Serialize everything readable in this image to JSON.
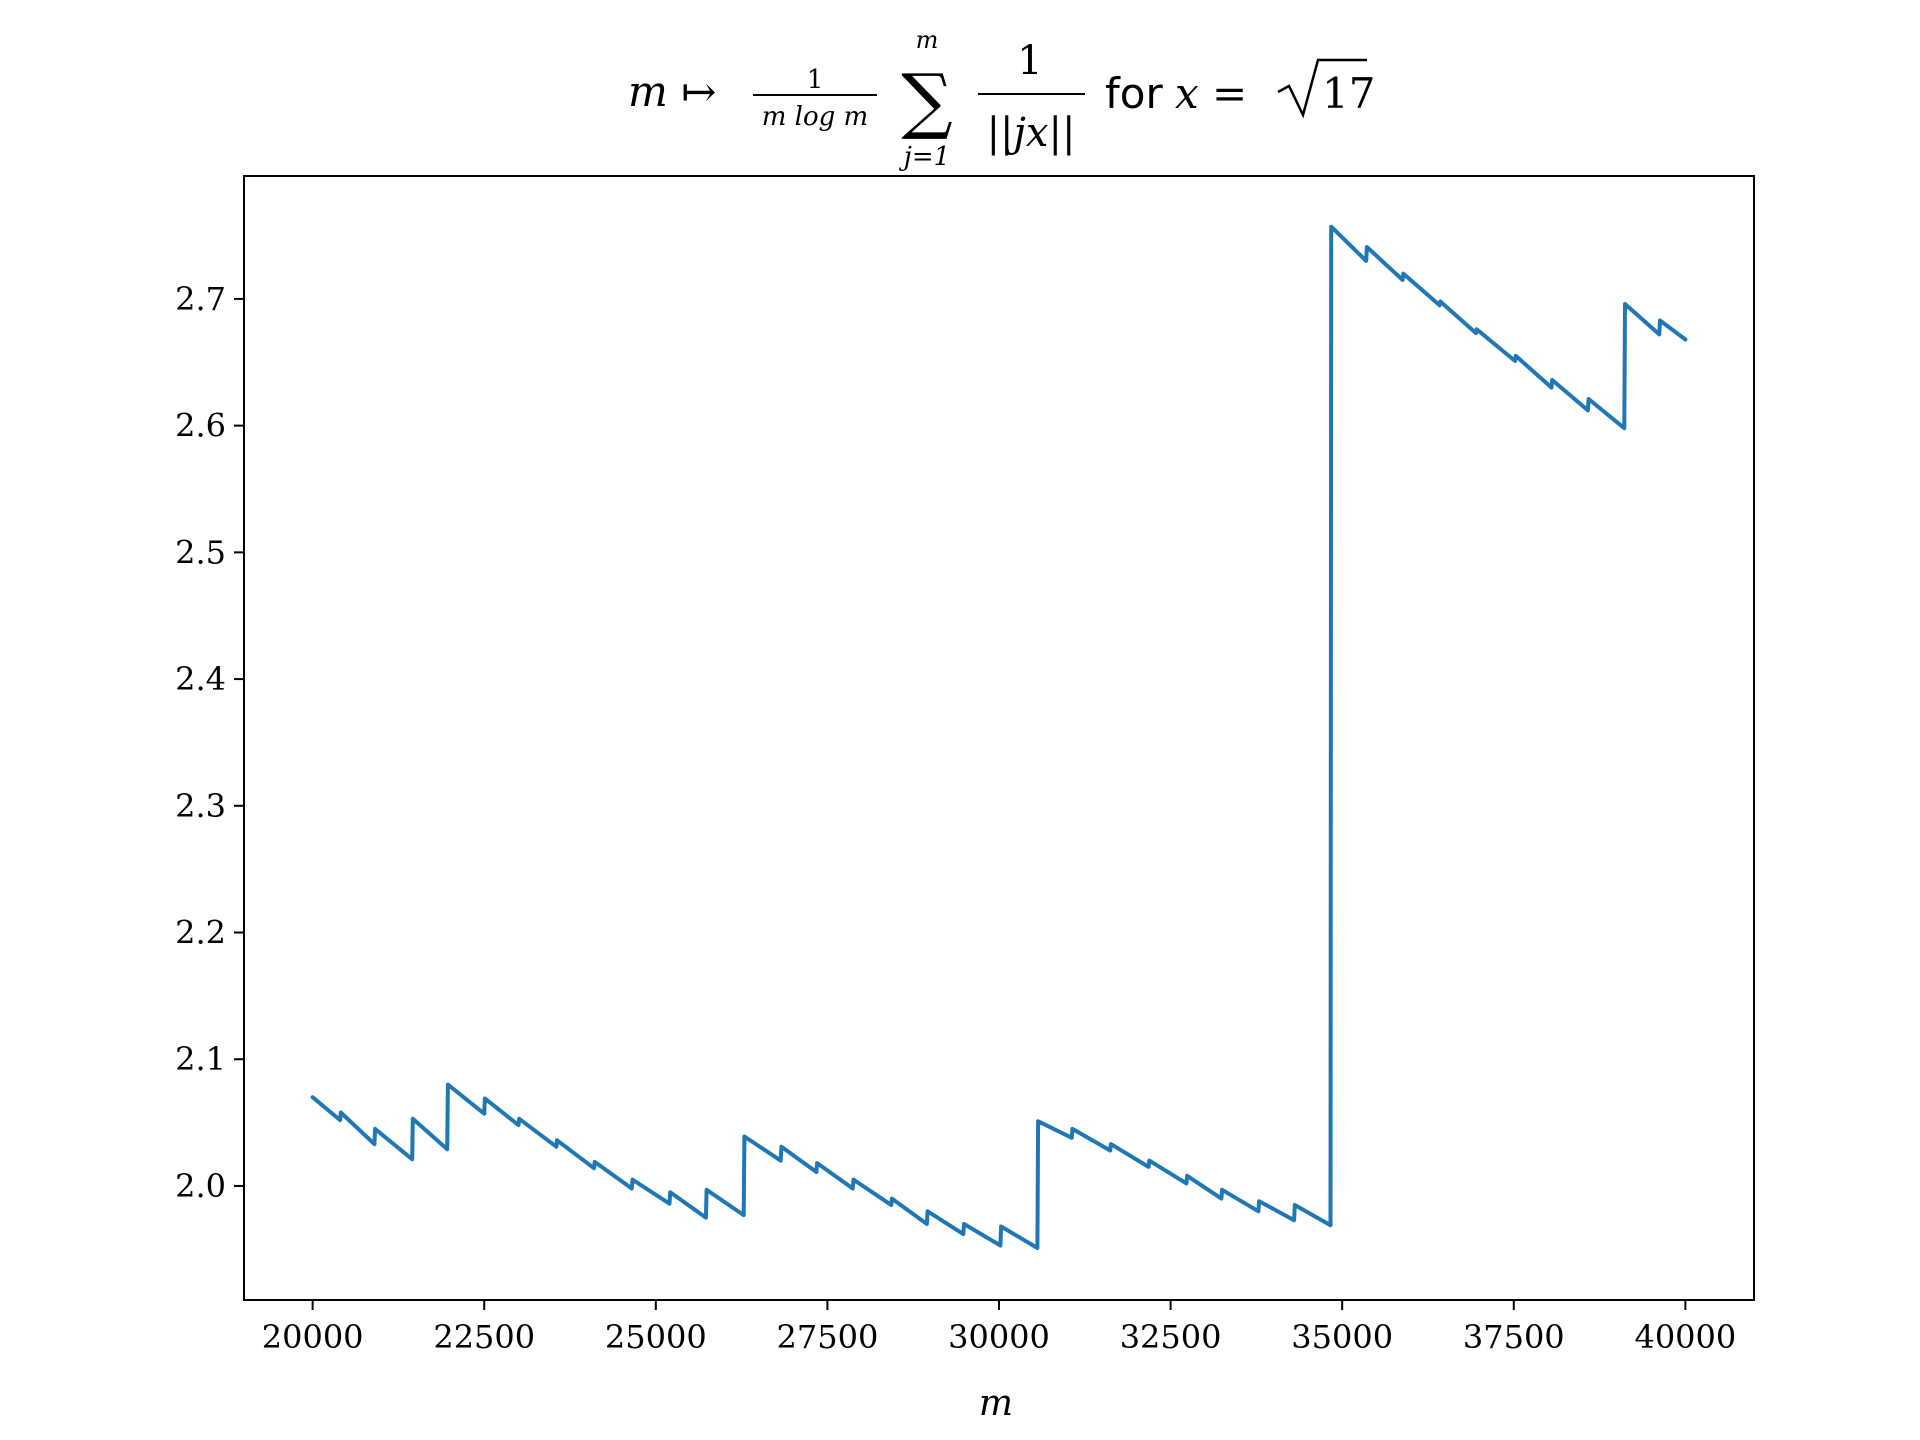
{
  "chart_data": {
    "type": "line",
    "title": {
      "lhs": "m ↦",
      "frac_num": "1",
      "frac_den": "m log m",
      "sum_symbol": "∑",
      "sum_upper": "m",
      "sum_lower": "j=1",
      "term_num": "1",
      "term_den": "||jx||",
      "for_word": "for",
      "condition": "x =",
      "radicand": "17"
    },
    "xlabel": "m",
    "ylabel": "",
    "xlim": [
      19000,
      41000
    ],
    "ylim": [
      1.91,
      2.797
    ],
    "xticks": [
      20000,
      22500,
      25000,
      27500,
      30000,
      32500,
      35000,
      37500,
      40000
    ],
    "xtick_labels": [
      "20000",
      "22500",
      "25000",
      "27500",
      "30000",
      "32500",
      "35000",
      "37500",
      "40000"
    ],
    "yticks": [
      2.0,
      2.1,
      2.2,
      2.3,
      2.4,
      2.5,
      2.6,
      2.7
    ],
    "ytick_labels": [
      "2.0",
      "2.1",
      "2.2",
      "2.3",
      "2.4",
      "2.5",
      "2.6",
      "2.7"
    ],
    "grid": false,
    "line_color": "#1f77b4",
    "series": [
      {
        "x": [
          20000,
          20400,
          20410,
          20900,
          20910,
          21450,
          21460,
          21960,
          21970,
          22500,
          22510,
          23000,
          23010,
          23550,
          23560,
          24100,
          24110,
          24650,
          24660,
          25200,
          25210,
          25730,
          25740,
          26280,
          26290,
          26820,
          26830,
          27340,
          27350,
          27870,
          27880,
          28430,
          28440,
          28950,
          28960,
          29480,
          29490,
          30020,
          30030,
          30560,
          30570,
          31060,
          31070,
          31620,
          31630,
          32180,
          32190,
          32730,
          32740,
          33240,
          33250,
          33780,
          33790,
          34300,
          34310,
          34830,
          34840,
          35350,
          35360,
          35880,
          35890,
          36420,
          36430,
          36950,
          36960,
          37520,
          37530,
          38050,
          38060,
          38580,
          38590,
          39110,
          39120,
          39620,
          39630,
          40000
        ],
        "y": [
          2.07,
          2.052,
          2.058,
          2.033,
          2.045,
          2.021,
          2.053,
          2.029,
          2.08,
          2.057,
          2.069,
          2.048,
          2.053,
          2.031,
          2.036,
          2.014,
          2.019,
          1.998,
          2.005,
          1.986,
          1.995,
          1.975,
          1.997,
          1.977,
          2.039,
          2.02,
          2.031,
          2.011,
          2.018,
          1.998,
          2.005,
          1.985,
          1.99,
          1.97,
          1.98,
          1.962,
          1.97,
          1.953,
          1.968,
          1.951,
          2.051,
          2.038,
          2.045,
          2.028,
          2.033,
          2.015,
          2.02,
          2.002,
          2.008,
          1.99,
          1.997,
          1.98,
          1.988,
          1.973,
          1.985,
          1.969,
          2.757,
          2.73,
          2.741,
          2.715,
          2.72,
          2.695,
          2.698,
          2.673,
          2.676,
          2.651,
          2.655,
          2.63,
          2.636,
          2.612,
          2.621,
          2.598,
          2.696,
          2.672,
          2.683,
          2.668
        ]
      }
    ]
  }
}
